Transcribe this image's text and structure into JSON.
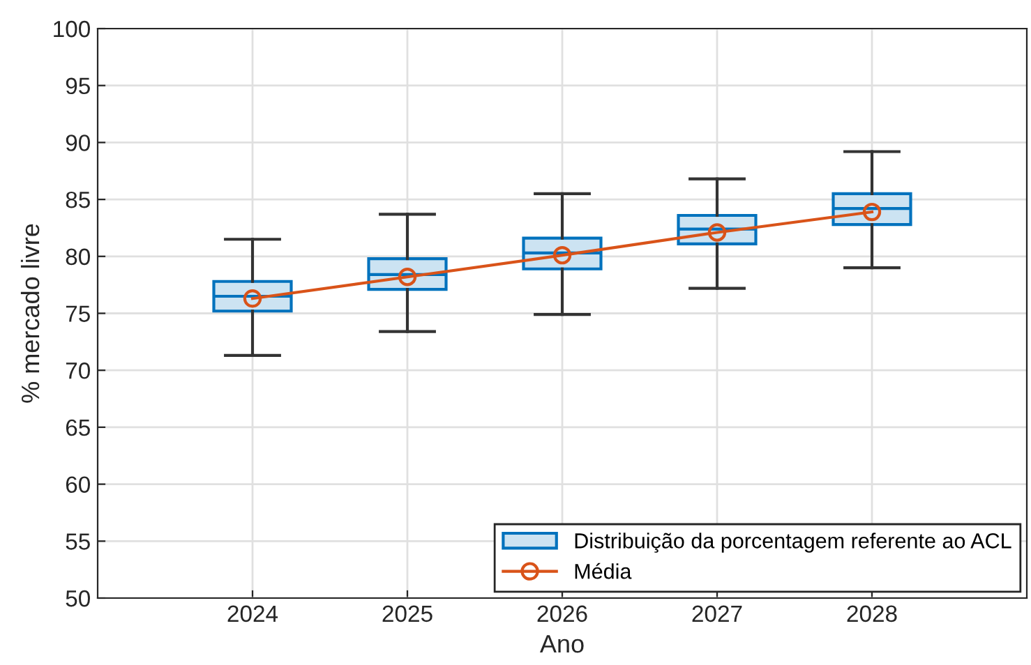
{
  "chart_data": {
    "type": "box",
    "xlabel": "Ano",
    "ylabel": "% mercado livre",
    "x": [
      2024,
      2025,
      2026,
      2027,
      2028
    ],
    "xlim": [
      2023,
      2029
    ],
    "xticks": [
      2024,
      2025,
      2026,
      2027,
      2028
    ],
    "ylim": [
      50,
      100
    ],
    "yticks": [
      50,
      55,
      60,
      65,
      70,
      75,
      80,
      85,
      90,
      95,
      100
    ],
    "grid": true,
    "legend": "bottom right",
    "series": [
      {
        "name": "Distribuição da porcentagem referente ao ACL",
        "color": "#0072bd",
        "boxes": [
          {
            "low": 71.3,
            "q1": 75.2,
            "median": 76.5,
            "q3": 77.8,
            "high": 81.5
          },
          {
            "low": 73.4,
            "q1": 77.1,
            "median": 78.4,
            "q3": 79.8,
            "high": 83.7
          },
          {
            "low": 74.9,
            "q1": 78.9,
            "median": 80.3,
            "q3": 81.6,
            "high": 85.5
          },
          {
            "low": 77.2,
            "q1": 81.1,
            "median": 82.4,
            "q3": 83.6,
            "high": 86.8
          },
          {
            "low": 79.0,
            "q1": 82.8,
            "median": 84.2,
            "q3": 85.5,
            "high": 89.2
          }
        ]
      },
      {
        "type": "line",
        "name": "Média",
        "color": "#d95319",
        "marker": "circle",
        "line_style": "solid",
        "values": [
          76.3,
          78.2,
          80.1,
          82.1,
          83.9
        ]
      }
    ]
  }
}
